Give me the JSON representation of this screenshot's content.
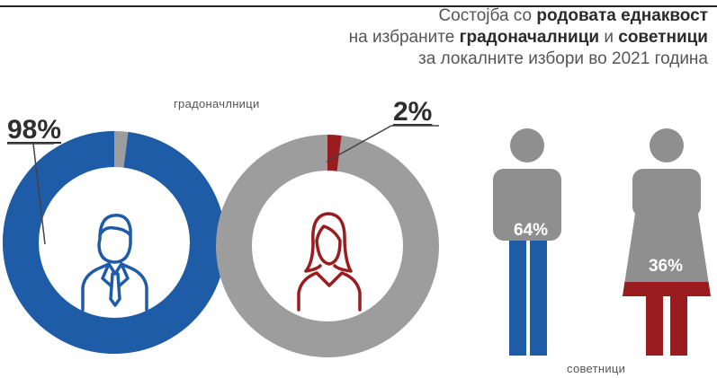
{
  "title": {
    "line1_pre": "Состојба со ",
    "line1_bold": "родовата еднаквост",
    "line2_pre": "на избраните ",
    "line2_bold1": "градоначалници",
    "line2_mid": " и ",
    "line2_bold2": "советници",
    "line3": "за локалните избори во 2021 година"
  },
  "labels": {
    "mayors": "градоначлници",
    "councillors": "советници"
  },
  "colors": {
    "blue": "#1f5ca8",
    "gray": "#9d9d9d",
    "red": "#9b1c1f",
    "figure_gray": "#8f8f8f"
  },
  "chart_data": [
    {
      "type": "pie",
      "title": "градоначлници",
      "slices": [
        {
          "label": "98%",
          "value": 98,
          "color": "#1f5ca8"
        },
        {
          "value": 2,
          "color": "#9d9d9d"
        }
      ],
      "icon": "man-icon"
    },
    {
      "type": "pie",
      "slices": [
        {
          "label": "2%",
          "value": 2,
          "color": "#9b1c1f"
        },
        {
          "value": 98,
          "color": "#9d9d9d"
        }
      ],
      "icon": "woman-icon"
    },
    {
      "type": "bar",
      "title": "советници",
      "categories": [
        "man-figure",
        "woman-figure"
      ],
      "values": [
        64,
        36
      ],
      "labels": [
        "64%",
        "36%"
      ]
    }
  ]
}
